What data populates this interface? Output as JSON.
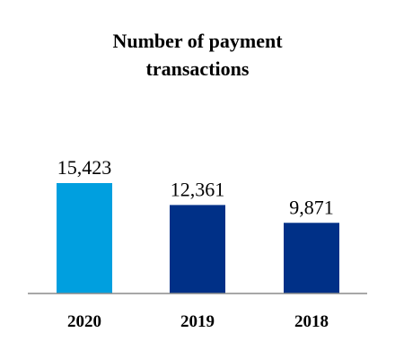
{
  "chart_data": {
    "type": "bar",
    "title_lines": [
      "Number of payment",
      "transactions"
    ],
    "categories": [
      "2020",
      "2019",
      "2018"
    ],
    "values": [
      15423,
      12361,
      9871
    ],
    "value_labels": [
      "15,423",
      "12,361",
      "9,871"
    ],
    "bar_colors": [
      "#009fdf",
      "#003087",
      "#003087"
    ],
    "axis_color": "#8c8c8c",
    "xlabel": "",
    "ylabel": "",
    "ylim": [
      0,
      15423
    ],
    "grid": false,
    "legend": "none"
  }
}
